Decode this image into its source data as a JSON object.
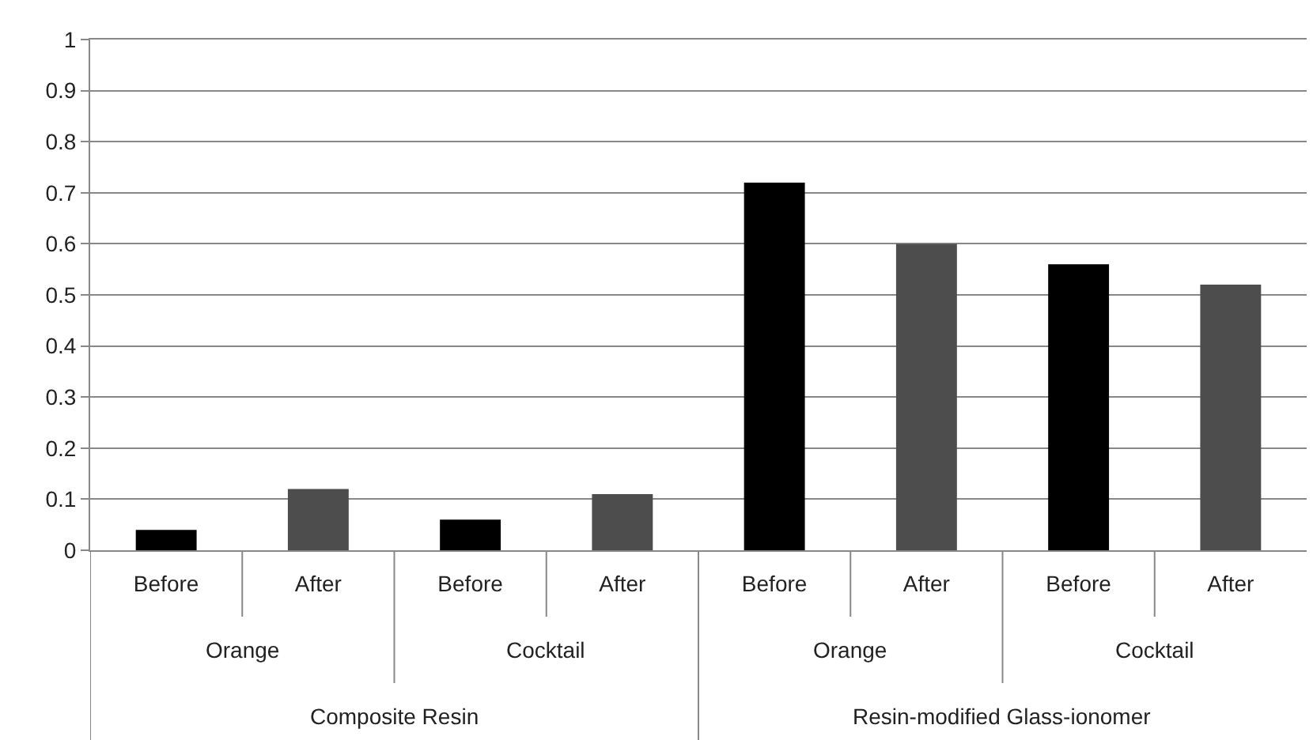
{
  "chart_data": {
    "type": "bar",
    "categories": [
      "Before",
      "After",
      "Before",
      "After",
      "Before",
      "After",
      "Before",
      "After"
    ],
    "values": [
      0.04,
      0.12,
      0.06,
      0.11,
      0.72,
      0.6,
      0.56,
      0.52
    ],
    "colors": [
      "#000000",
      "#4d4d4d",
      "#000000",
      "#4d4d4d",
      "#000000",
      "#4d4d4d",
      "#000000",
      "#4d4d4d"
    ],
    "annotations": [
      "Orange",
      "Cocktail",
      "Orange",
      "Cocktail",
      "Composite Resin",
      "Resin-modified Glass-ionomer"
    ],
    "ylim": [
      0,
      1
    ],
    "yticks": [
      0,
      0.1,
      0.2,
      0.3,
      0.4,
      0.5,
      0.6,
      0.7,
      0.8,
      0.9,
      1
    ],
    "grid": "y"
  }
}
